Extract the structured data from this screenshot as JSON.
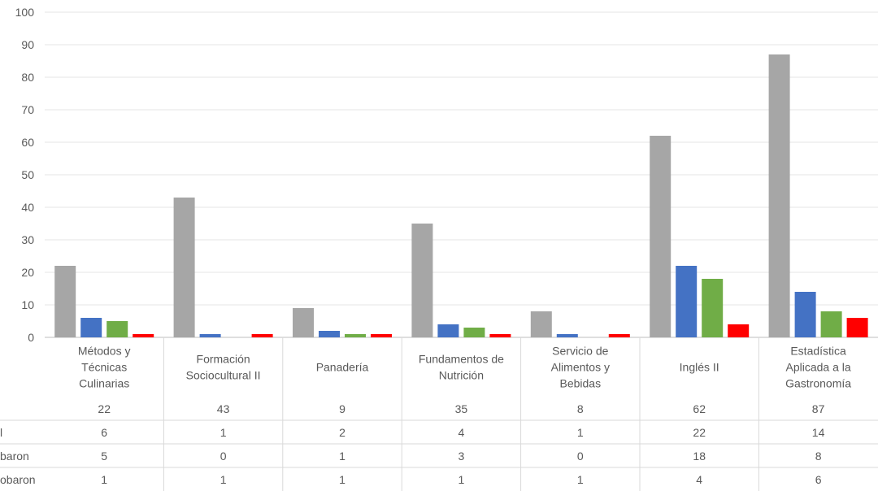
{
  "chart_data": {
    "type": "bar",
    "categories": [
      "Métodos y Técnicas Culinarias",
      "Formación Sociocultural II",
      "Panadería",
      "Fundamentos de Nutrición",
      "Servicio de Alimentos y Bebidas",
      "Inglés II",
      "Estadística Aplicada a la Gastronomía"
    ],
    "category_lines": [
      [
        "Métodos y",
        "Técnicas",
        "Culinarias"
      ],
      [
        "Formación",
        "Sociocultural II"
      ],
      [
        "Panadería"
      ],
      [
        "Fundamentos de",
        "Nutrición"
      ],
      [
        "Servicio de",
        "Alimentos y",
        "Bebidas"
      ],
      [
        "Inglés II"
      ],
      [
        "Estadística",
        "Aplicada a la",
        "Gastronomía"
      ]
    ],
    "series": [
      {
        "name": "",
        "color": "#a6a6a6",
        "values": [
          22,
          43,
          9,
          35,
          8,
          62,
          87
        ]
      },
      {
        "name": "l",
        "color": "#4472c4",
        "values": [
          6,
          1,
          2,
          4,
          1,
          22,
          14
        ]
      },
      {
        "name": "baron",
        "color": "#70ad47",
        "values": [
          5,
          0,
          1,
          3,
          0,
          18,
          8
        ]
      },
      {
        "name": "obaron",
        "color": "#ff0000",
        "values": [
          1,
          1,
          1,
          1,
          1,
          4,
          6
        ]
      }
    ],
    "ylim": [
      0,
      100
    ],
    "y_ticks": [
      0,
      10,
      20,
      30,
      40,
      50,
      60,
      70,
      80,
      90,
      100
    ],
    "grid": true,
    "legend": "data table below chart",
    "title": "",
    "xlabel": "",
    "ylabel": ""
  }
}
